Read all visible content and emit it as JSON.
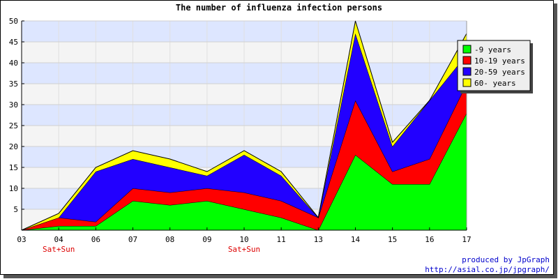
{
  "chart_data": {
    "type": "area",
    "stacked": true,
    "title": "The number of influenza infection persons",
    "categories": [
      "03",
      "04",
      "06",
      "07",
      "08",
      "09",
      "10",
      "11",
      "13",
      "14",
      "15",
      "16",
      "17"
    ],
    "sublabels": [
      "",
      "Sat+Sun",
      "",
      "",
      "",
      "",
      "Sat+Sun",
      "",
      "",
      "",
      "",
      "",
      ""
    ],
    "ylim": [
      0,
      50
    ],
    "yticks": [
      5,
      10,
      15,
      20,
      25,
      30,
      35,
      40,
      45,
      50
    ],
    "grid": true,
    "legend_position": "top-right",
    "series": [
      {
        "name": "-9 years",
        "color": "#00ff00",
        "values": [
          0,
          1,
          1,
          7,
          6,
          7,
          5,
          3,
          0,
          18,
          11,
          11,
          28
        ]
      },
      {
        "name": "10-19 years",
        "color": "#ff0000",
        "values": [
          0,
          2,
          1,
          3,
          3,
          3,
          4,
          4,
          3,
          13,
          3,
          6,
          7
        ]
      },
      {
        "name": "20-59 years",
        "color": "#2200ff",
        "values": [
          0,
          0,
          12,
          7,
          6,
          3,
          9,
          6,
          0,
          16,
          6,
          14,
          7
        ]
      },
      {
        "name": "60- years",
        "color": "#ffff00",
        "values": [
          0,
          1,
          1,
          2,
          2,
          1,
          1,
          1,
          0,
          3,
          1,
          0,
          5
        ]
      }
    ]
  },
  "footer": {
    "credit": "produced by JpGraph",
    "url": "http://asial.co.jp/jpgraph/"
  }
}
